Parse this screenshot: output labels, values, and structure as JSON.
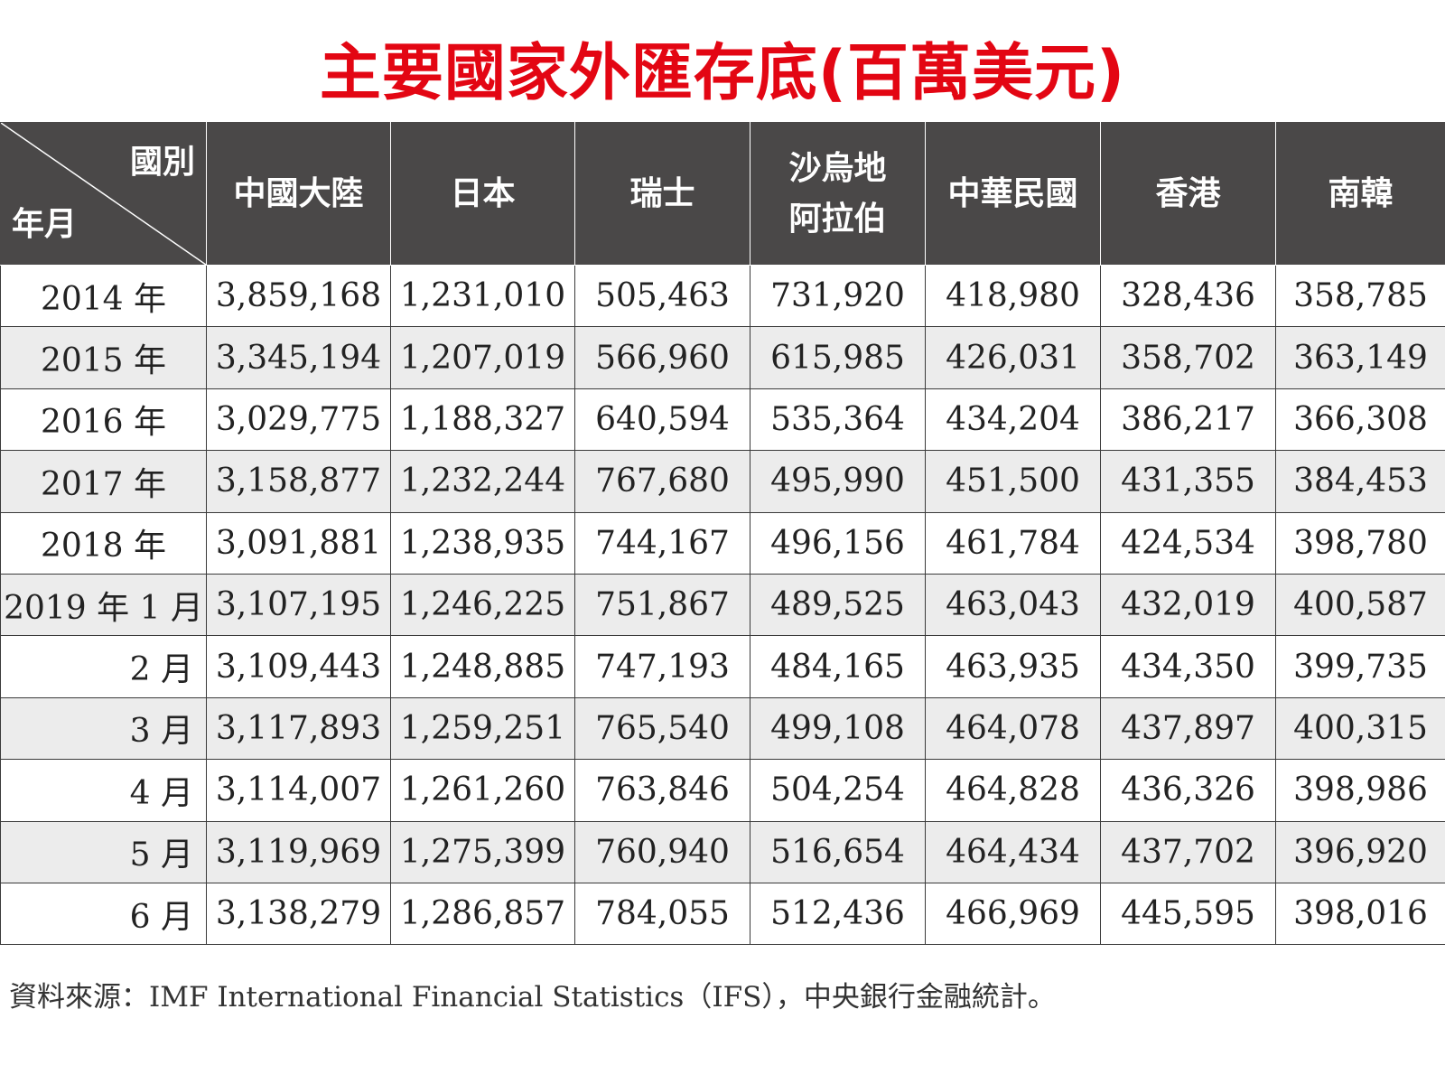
{
  "title": "主要國家外匯存底(百萬美元)",
  "table": {
    "corner": {
      "column_label": "國別",
      "row_label": "年月"
    },
    "headers": [
      {
        "line1": "中國大陸",
        "line2": ""
      },
      {
        "line1": "日本",
        "line2": ""
      },
      {
        "line1": "瑞士",
        "line2": ""
      },
      {
        "line1": "沙烏地",
        "line2": "阿拉伯"
      },
      {
        "line1": "中華民國",
        "line2": ""
      },
      {
        "line1": "香港",
        "line2": ""
      },
      {
        "line1": "南韓",
        "line2": ""
      }
    ],
    "rows": [
      {
        "period": "2014 年",
        "values": [
          "3,859,168",
          "1,231,010",
          "505,463",
          "731,920",
          "418,980",
          "328,436",
          "358,785"
        ]
      },
      {
        "period": "2015 年",
        "values": [
          "3,345,194",
          "1,207,019",
          "566,960",
          "615,985",
          "426,031",
          "358,702",
          "363,149"
        ]
      },
      {
        "period": "2016 年",
        "values": [
          "3,029,775",
          "1,188,327",
          "640,594",
          "535,364",
          "434,204",
          "386,217",
          "366,308"
        ]
      },
      {
        "period": "2017 年",
        "values": [
          "3,158,877",
          "1,232,244",
          "767,680",
          "495,990",
          "451,500",
          "431,355",
          "384,453"
        ]
      },
      {
        "period": "2018 年",
        "values": [
          "3,091,881",
          "1,238,935",
          "744,167",
          "496,156",
          "461,784",
          "424,534",
          "398,780"
        ]
      },
      {
        "period": "2019 年 1 月",
        "values": [
          "3,107,195",
          "1,246,225",
          "751,867",
          "489,525",
          "463,043",
          "432,019",
          "400,587"
        ]
      },
      {
        "period": "2 月",
        "values": [
          "3,109,443",
          "1,248,885",
          "747,193",
          "484,165",
          "463,935",
          "434,350",
          "399,735"
        ]
      },
      {
        "period": "3 月",
        "values": [
          "3,117,893",
          "1,259,251",
          "765,540",
          "499,108",
          "464,078",
          "437,897",
          "400,315"
        ]
      },
      {
        "period": "4 月",
        "values": [
          "3,114,007",
          "1,261,260",
          "763,846",
          "504,254",
          "464,828",
          "436,326",
          "398,986"
        ]
      },
      {
        "period": "5 月",
        "values": [
          "3,119,969",
          "1,275,399",
          "760,940",
          "516,654",
          "464,434",
          "437,702",
          "396,920"
        ]
      },
      {
        "period": "6 月",
        "values": [
          "3,138,279",
          "1,286,857",
          "784,055",
          "512,436",
          "466,969",
          "445,595",
          "398,016"
        ]
      }
    ]
  },
  "source": "資料來源：IMF International Financial Statistics（IFS），中央銀行金融統計。",
  "colors": {
    "title": "#e30613",
    "header_bg": "#4a4848",
    "stripe_bg": "#ececec"
  }
}
